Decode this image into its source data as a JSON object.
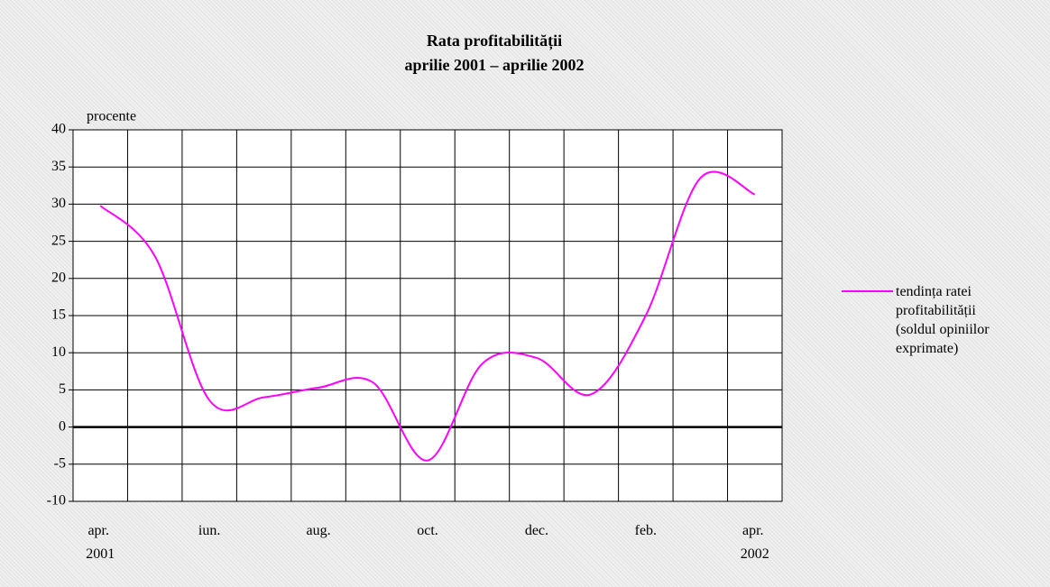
{
  "chart_data": {
    "type": "line",
    "title": "Rata profitabilității",
    "subtitle": "aprilie 2001 – aprilie 2002",
    "y_label": "procente",
    "categories": [
      "apr. 2001",
      null,
      "iun.",
      null,
      "aug.",
      null,
      "oct.",
      null,
      "dec.",
      null,
      "feb.",
      null,
      "apr. 2002"
    ],
    "series": [
      {
        "name": "tendința ratei profitabilității (soldul opiniilor exprimate)",
        "color": "#ff00ff",
        "values": [
          29.8,
          23,
          3.6,
          4,
          5.3,
          6,
          -4.5,
          8.5,
          9.3,
          4.4,
          15,
          33.5,
          31.3
        ]
      }
    ],
    "ylim": [
      -10,
      40
    ],
    "yticks": [
      -10,
      -5,
      0,
      5,
      10,
      15,
      20,
      25,
      30,
      35,
      40
    ],
    "grid": true,
    "legend": "right"
  }
}
